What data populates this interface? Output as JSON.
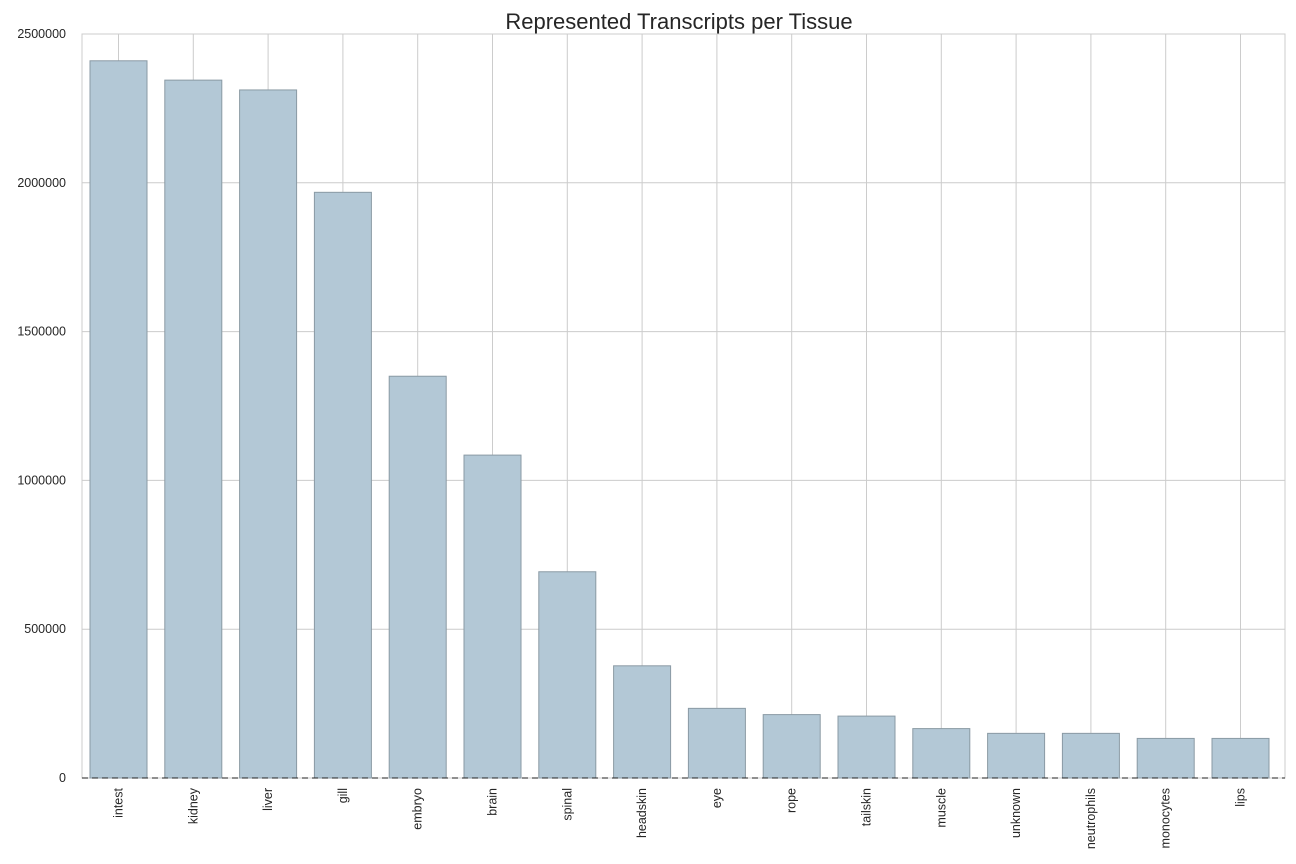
{
  "chart_data": {
    "type": "bar",
    "title": "Represented Transcripts per Tissue",
    "xlabel": "",
    "ylabel": "",
    "categories": [
      "intest",
      "kidney",
      "liver",
      "gill",
      "embryo",
      "brain",
      "spinal",
      "headskin",
      "eye",
      "rope",
      "tailskin",
      "muscle",
      "unknown",
      "neutrophils",
      "monocytes",
      "lips"
    ],
    "values": [
      2410000,
      2345000,
      2312000,
      1968000,
      1350000,
      1085000,
      693000,
      377000,
      234000,
      213000,
      208000,
      166000,
      150000,
      150000,
      133000,
      133000
    ],
    "ylim": [
      0,
      2500000
    ],
    "yticks": [
      0,
      500000,
      1000000,
      1500000,
      2000000,
      2500000
    ],
    "ytick_labels": [
      "0",
      "500000",
      "1000000",
      "1500000",
      "2000000",
      "2500000"
    ],
    "grid": true,
    "bar_color": "#b3c8d6",
    "bar_edge_color": "#8a9aa4",
    "grid_color": "#cccccc",
    "baseline_style": "dashed"
  }
}
